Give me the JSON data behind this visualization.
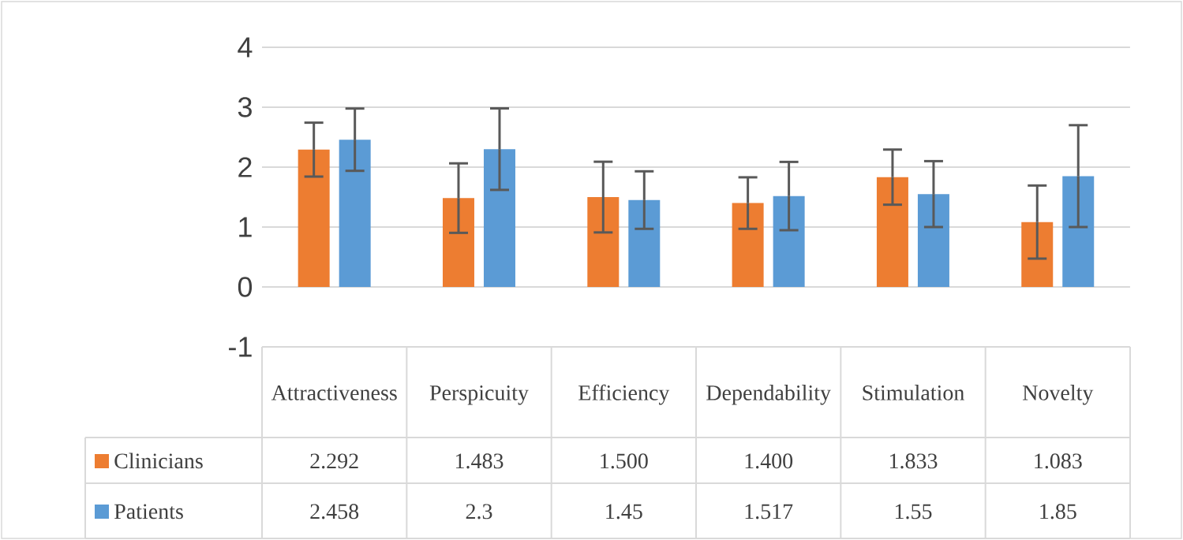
{
  "chart_data": {
    "type": "bar",
    "categories": [
      "Attractiveness",
      "Perspicuity",
      "Efficiency",
      "Dependability",
      "Stimulation",
      "Novelty"
    ],
    "series": [
      {
        "name": "Clinicians",
        "color": "#ed7d31",
        "values": [
          2.292,
          1.483,
          1.5,
          1.4,
          1.833,
          1.083
        ],
        "value_labels": [
          "2.292",
          "1.483",
          "1.500",
          "1.400",
          "1.833",
          "1.083"
        ],
        "errors": [
          0.45,
          0.58,
          0.59,
          0.43,
          0.46,
          0.61
        ]
      },
      {
        "name": "Patients",
        "color": "#5b9bd5",
        "values": [
          2.458,
          2.3,
          1.45,
          1.517,
          1.55,
          1.85
        ],
        "value_labels": [
          "2.458",
          "2.3",
          "1.45",
          "1.517",
          "1.55",
          "1.85"
        ],
        "errors": [
          0.52,
          0.68,
          0.48,
          0.57,
          0.55,
          0.85
        ]
      }
    ],
    "ylim": [
      -1,
      4
    ],
    "yticks": [
      -1,
      0,
      1,
      2,
      3,
      4
    ],
    "grid": "y",
    "legend": "bottom"
  }
}
